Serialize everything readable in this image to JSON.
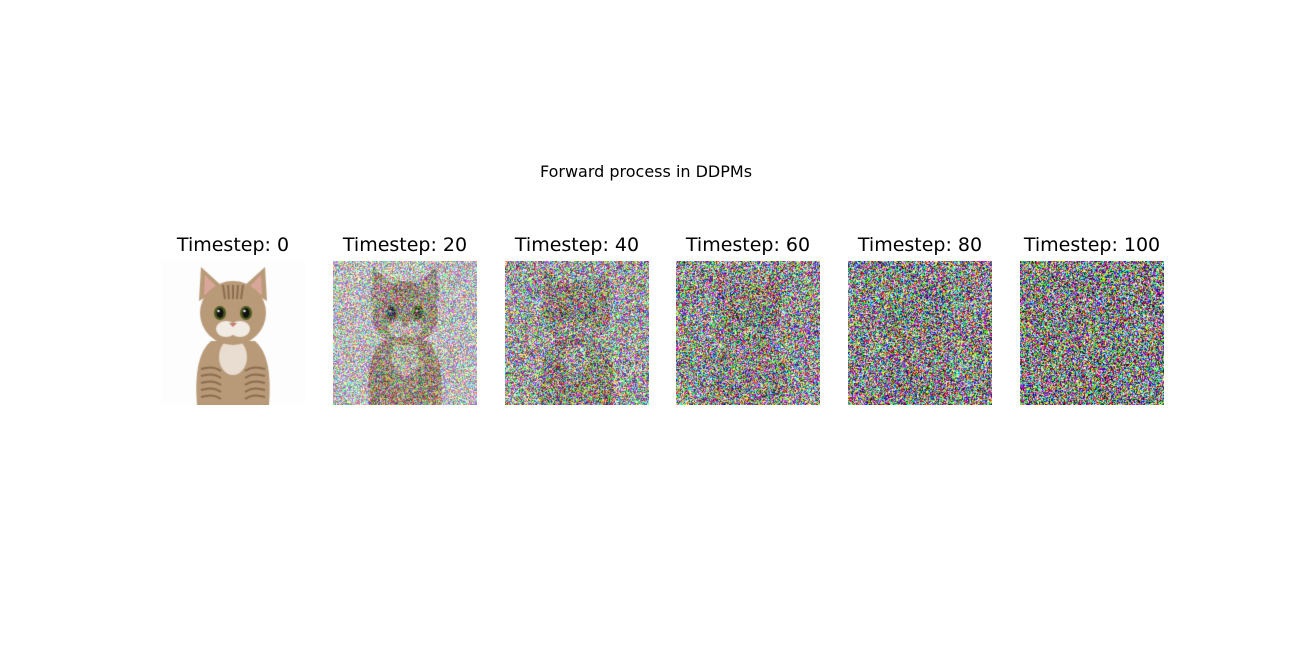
{
  "figure": {
    "title": "Forward process in DDPMs",
    "panels": [
      {
        "label": "Timestep: 0",
        "timestep": 0
      },
      {
        "label": "Timestep: 20",
        "timestep": 20
      },
      {
        "label": "Timestep: 40",
        "timestep": 40
      },
      {
        "label": "Timestep: 60",
        "timestep": 60
      },
      {
        "label": "Timestep: 80",
        "timestep": 80
      },
      {
        "label": "Timestep: 100",
        "timestep": 100
      }
    ],
    "noise_fraction": [
      0,
      0.55,
      0.78,
      0.88,
      0.94,
      0.98
    ],
    "subject_icon": "cat-photo"
  }
}
